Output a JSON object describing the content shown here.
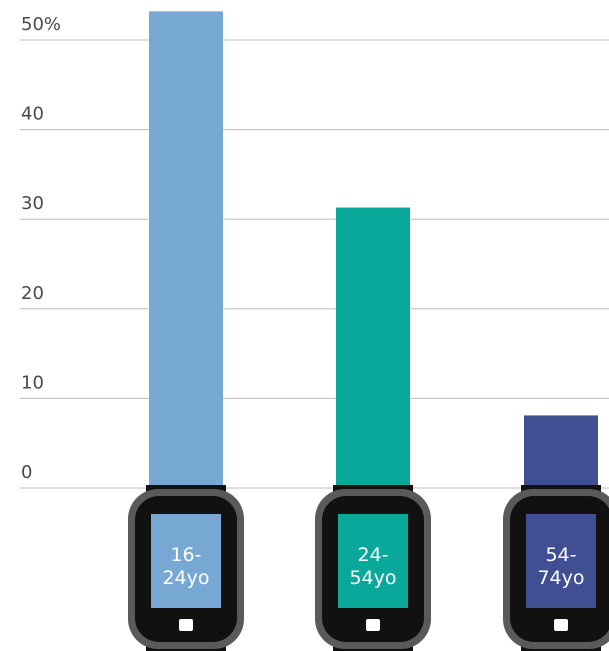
{
  "chart_data": {
    "type": "bar",
    "categories": [
      "16-24 yo",
      "24-54 yo",
      "54-74 yo"
    ],
    "values": [
      53.2,
      31.3,
      8.1
    ],
    "bar_colors": [
      "#77a7d3",
      "#0aa89a",
      "#3f4f91"
    ],
    "ylim": [
      0,
      50
    ],
    "yticks": [
      {
        "value": 0,
        "label": "0"
      },
      {
        "value": 10,
        "label": "10"
      },
      {
        "value": 20,
        "label": "20"
      },
      {
        "value": 30,
        "label": "30"
      },
      {
        "value": 40,
        "label": "40"
      },
      {
        "value": 50,
        "label": "50%"
      }
    ],
    "category_labels": [
      {
        "line1": "16-",
        "line2": "24yo"
      },
      {
        "line1": "24-",
        "line2": "54yo"
      },
      {
        "line1": "54-",
        "line2": "74yo"
      }
    ],
    "grid": true,
    "legend": "none",
    "watch_colors": {
      "frame": "#5a5a5a",
      "body": "#111111",
      "button": "#ffffff"
    }
  }
}
